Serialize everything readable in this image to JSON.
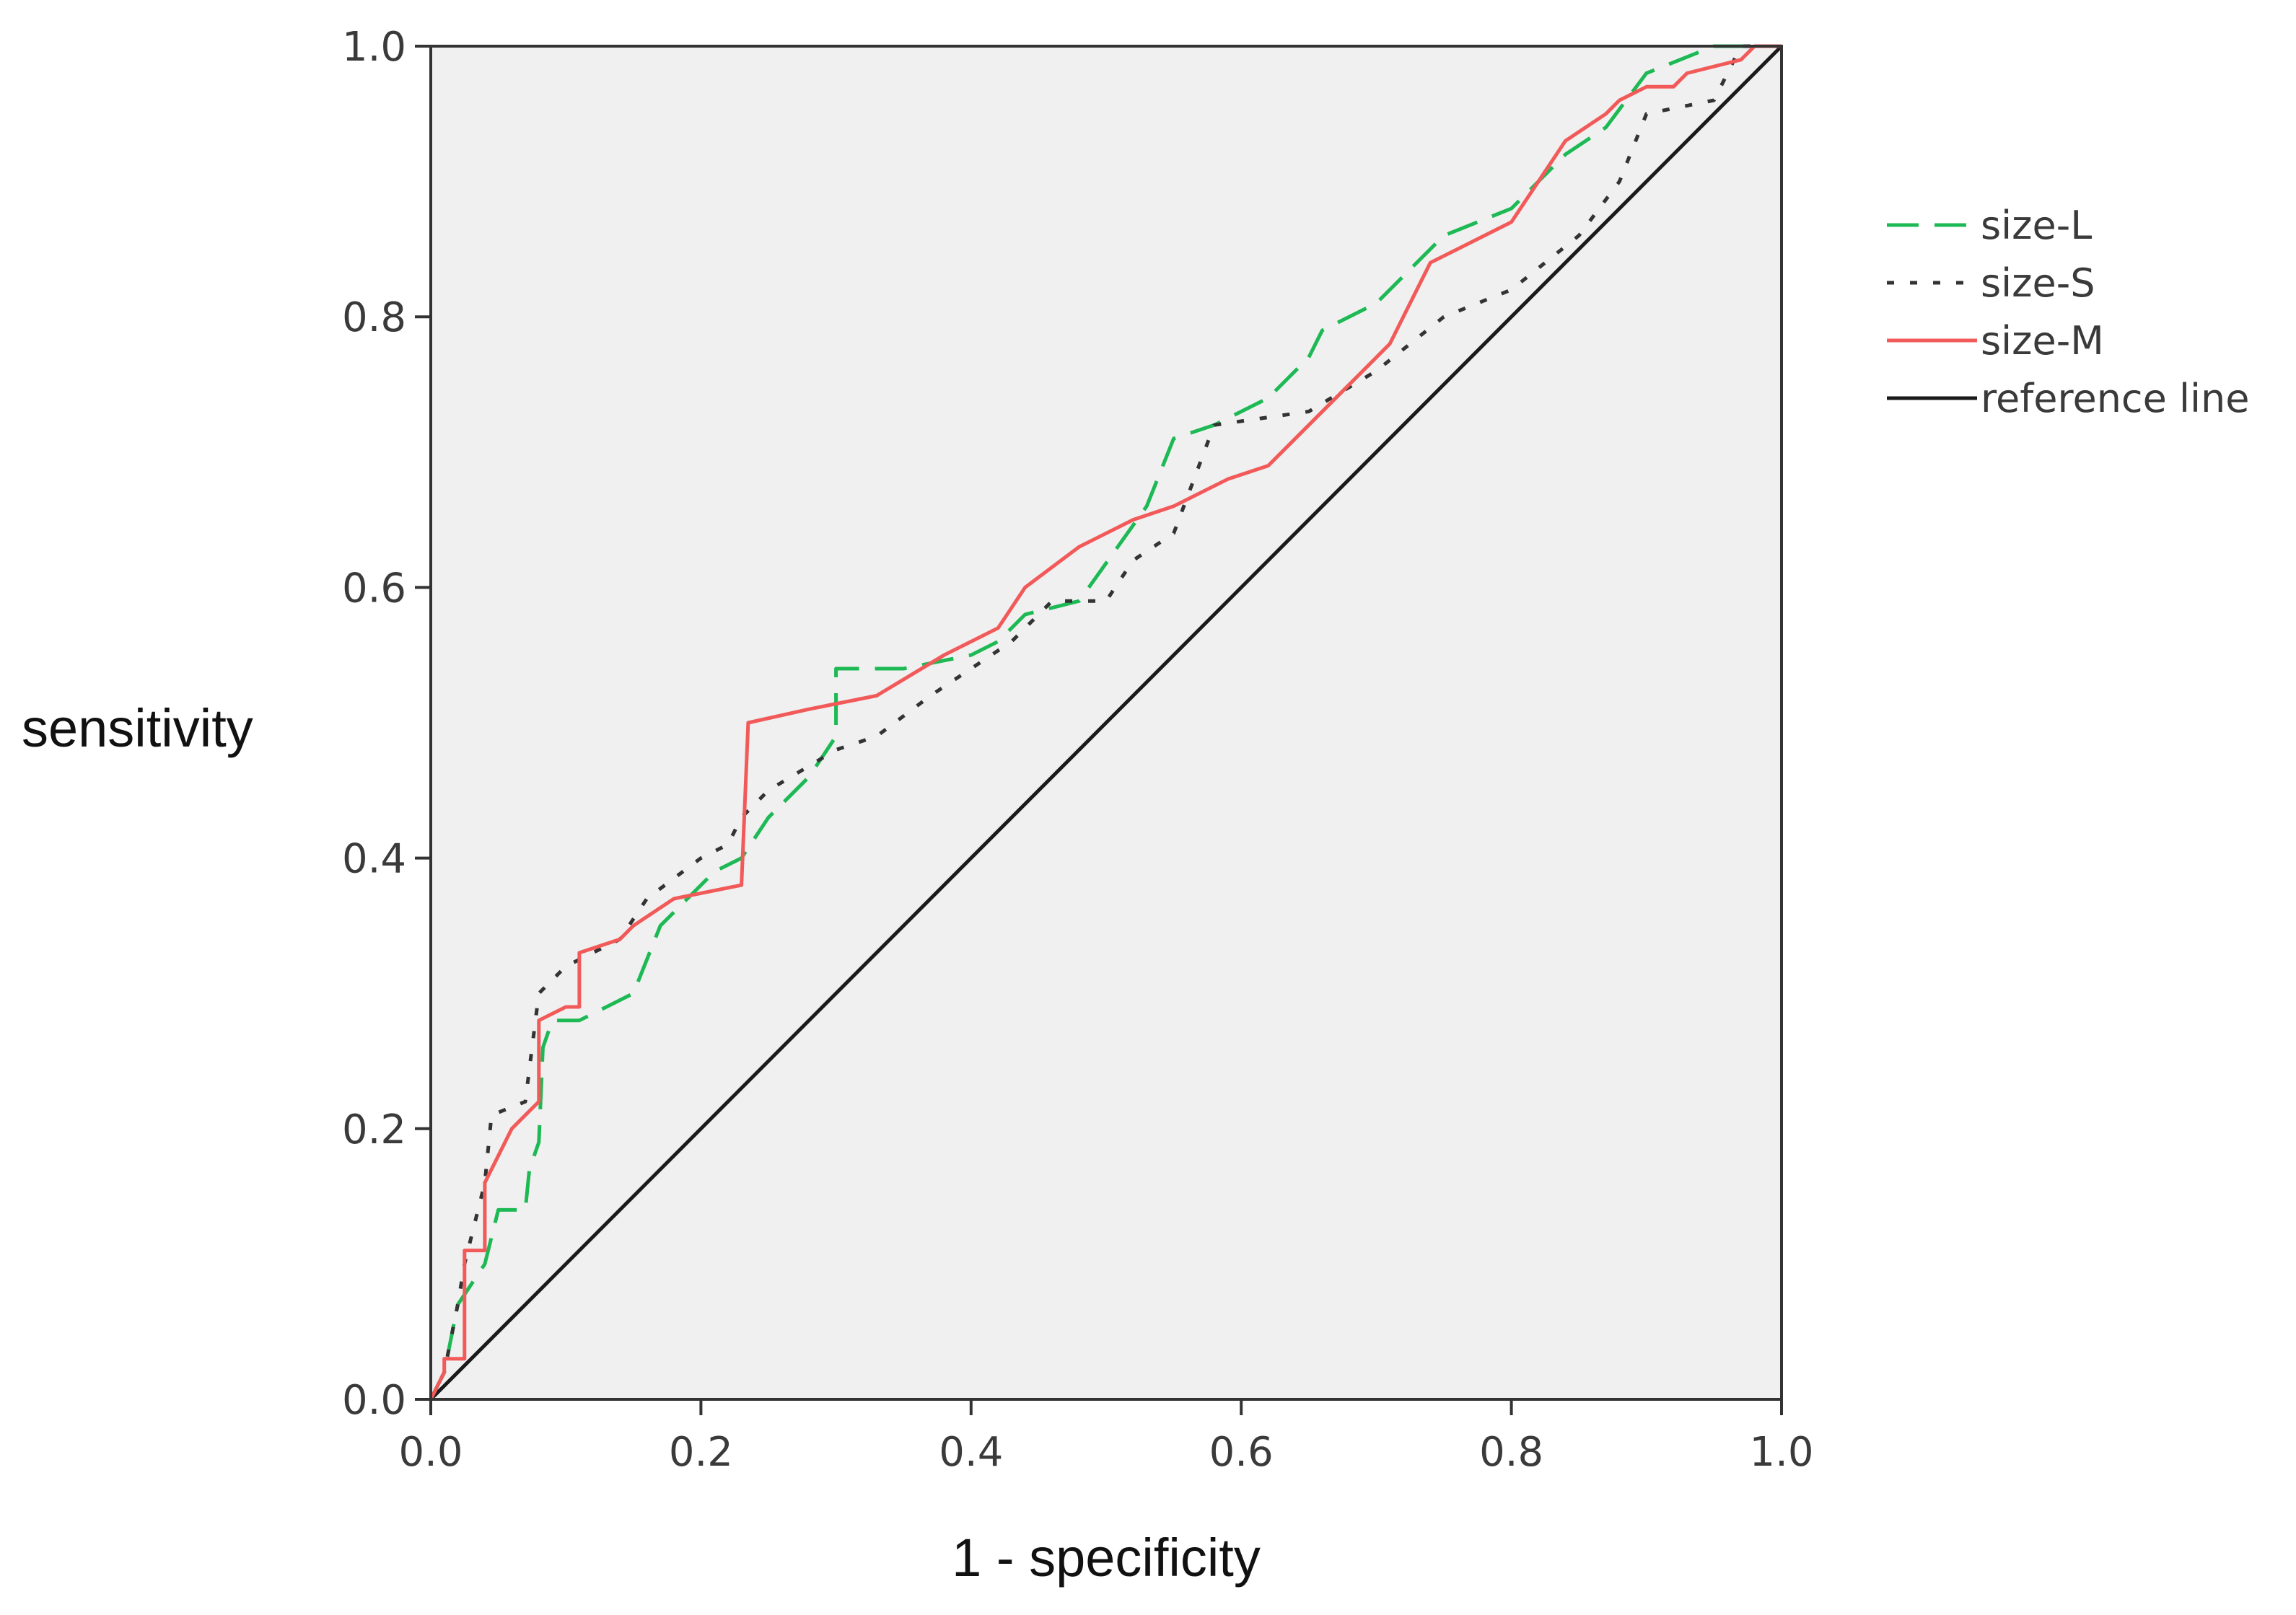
{
  "chart_data": {
    "type": "line",
    "title": "",
    "xlabel": "1 - specificity",
    "ylabel": "sensitivity",
    "xlim": [
      0,
      1
    ],
    "ylim": [
      0,
      1
    ],
    "x_ticks": [
      "0.0",
      "0.2",
      "0.4",
      "0.6",
      "0.8",
      "1.0"
    ],
    "y_ticks": [
      "0.0",
      "0.2",
      "0.4",
      "0.6",
      "0.8",
      "1.0"
    ],
    "grid": false,
    "legend_position": "right",
    "plot_background": "#f0f0f0",
    "series": [
      {
        "name": "size-L",
        "color": "#1db954",
        "dash": "dashed",
        "points": [
          [
            0,
            0
          ],
          [
            0.01,
            0.02
          ],
          [
            0.02,
            0.07
          ],
          [
            0.04,
            0.1
          ],
          [
            0.05,
            0.14
          ],
          [
            0.07,
            0.14
          ],
          [
            0.073,
            0.17
          ],
          [
            0.08,
            0.19
          ],
          [
            0.083,
            0.26
          ],
          [
            0.09,
            0.28
          ],
          [
            0.11,
            0.28
          ],
          [
            0.13,
            0.29
          ],
          [
            0.15,
            0.3
          ],
          [
            0.17,
            0.35
          ],
          [
            0.19,
            0.37
          ],
          [
            0.21,
            0.39
          ],
          [
            0.23,
            0.4
          ],
          [
            0.25,
            0.43
          ],
          [
            0.28,
            0.46
          ],
          [
            0.3,
            0.49
          ],
          [
            0.3,
            0.54
          ],
          [
            0.35,
            0.54
          ],
          [
            0.4,
            0.55
          ],
          [
            0.42,
            0.56
          ],
          [
            0.44,
            0.58
          ],
          [
            0.48,
            0.59
          ],
          [
            0.53,
            0.66
          ],
          [
            0.55,
            0.71
          ],
          [
            0.58,
            0.72
          ],
          [
            0.62,
            0.74
          ],
          [
            0.65,
            0.77
          ],
          [
            0.66,
            0.79
          ],
          [
            0.7,
            0.81
          ],
          [
            0.75,
            0.86
          ],
          [
            0.8,
            0.88
          ],
          [
            0.84,
            0.92
          ],
          [
            0.87,
            0.94
          ],
          [
            0.9,
            0.98
          ],
          [
            0.95,
            1.0
          ],
          [
            1,
            1
          ]
        ]
      },
      {
        "name": "size-S",
        "color": "#333333",
        "dash": "dotted",
        "points": [
          [
            0,
            0
          ],
          [
            0.01,
            0.02
          ],
          [
            0.02,
            0.07
          ],
          [
            0.025,
            0.1
          ],
          [
            0.04,
            0.16
          ],
          [
            0.045,
            0.21
          ],
          [
            0.07,
            0.22
          ],
          [
            0.08,
            0.3
          ],
          [
            0.1,
            0.32
          ],
          [
            0.12,
            0.33
          ],
          [
            0.14,
            0.34
          ],
          [
            0.16,
            0.37
          ],
          [
            0.2,
            0.4
          ],
          [
            0.22,
            0.41
          ],
          [
            0.23,
            0.43
          ],
          [
            0.25,
            0.45
          ],
          [
            0.3,
            0.48
          ],
          [
            0.33,
            0.49
          ],
          [
            0.37,
            0.52
          ],
          [
            0.4,
            0.54
          ],
          [
            0.43,
            0.56
          ],
          [
            0.46,
            0.59
          ],
          [
            0.5,
            0.59
          ],
          [
            0.52,
            0.62
          ],
          [
            0.55,
            0.64
          ],
          [
            0.58,
            0.72
          ],
          [
            0.65,
            0.73
          ],
          [
            0.7,
            0.76
          ],
          [
            0.75,
            0.8
          ],
          [
            0.8,
            0.82
          ],
          [
            0.85,
            0.86
          ],
          [
            0.88,
            0.9
          ],
          [
            0.9,
            0.95
          ],
          [
            0.95,
            0.96
          ],
          [
            0.97,
            1.0
          ],
          [
            1,
            1
          ]
        ]
      },
      {
        "name": "size-M",
        "color": "#f25a5a",
        "dash": "solid",
        "points": [
          [
            0,
            0
          ],
          [
            0.01,
            0.02
          ],
          [
            0.01,
            0.03
          ],
          [
            0.025,
            0.03
          ],
          [
            0.025,
            0.11
          ],
          [
            0.04,
            0.11
          ],
          [
            0.04,
            0.16
          ],
          [
            0.06,
            0.2
          ],
          [
            0.07,
            0.21
          ],
          [
            0.08,
            0.22
          ],
          [
            0.08,
            0.28
          ],
          [
            0.1,
            0.29
          ],
          [
            0.11,
            0.29
          ],
          [
            0.11,
            0.33
          ],
          [
            0.14,
            0.34
          ],
          [
            0.15,
            0.35
          ],
          [
            0.18,
            0.37
          ],
          [
            0.23,
            0.38
          ],
          [
            0.235,
            0.5
          ],
          [
            0.28,
            0.51
          ],
          [
            0.33,
            0.52
          ],
          [
            0.38,
            0.55
          ],
          [
            0.42,
            0.57
          ],
          [
            0.44,
            0.6
          ],
          [
            0.48,
            0.63
          ],
          [
            0.52,
            0.65
          ],
          [
            0.55,
            0.66
          ],
          [
            0.59,
            0.68
          ],
          [
            0.62,
            0.69
          ],
          [
            0.65,
            0.72
          ],
          [
            0.67,
            0.74
          ],
          [
            0.7,
            0.77
          ],
          [
            0.71,
            0.78
          ],
          [
            0.74,
            0.84
          ],
          [
            0.8,
            0.87
          ],
          [
            0.84,
            0.93
          ],
          [
            0.87,
            0.95
          ],
          [
            0.88,
            0.96
          ],
          [
            0.9,
            0.97
          ],
          [
            0.92,
            0.97
          ],
          [
            0.93,
            0.98
          ],
          [
            0.97,
            0.99
          ],
          [
            0.98,
            1.0
          ],
          [
            1,
            1
          ]
        ]
      },
      {
        "name": "reference line",
        "color": "#1a1a1a",
        "dash": "solid",
        "points": [
          [
            0,
            0
          ],
          [
            1,
            1
          ]
        ]
      }
    ]
  }
}
